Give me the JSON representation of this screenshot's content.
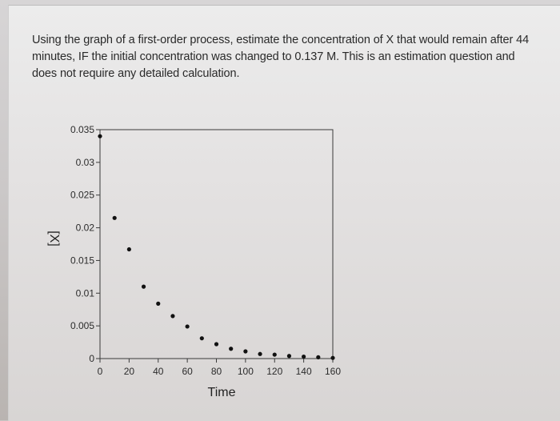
{
  "question": {
    "text": "Using the graph of a first-order process, estimate the concentration of X that would remain after 44 minutes, IF the initial concentration was changed to 0.137 M. This is an estimation question and does not require any detailed calculation."
  },
  "chart_data": {
    "type": "scatter",
    "title": "",
    "xlabel": "Time",
    "ylabel": "[X]",
    "xlim": [
      0,
      160
    ],
    "ylim": [
      0,
      0.035
    ],
    "xticks": [
      "0",
      "20",
      "40",
      "60",
      "80",
      "100",
      "120",
      "140",
      "160"
    ],
    "yticks": [
      "0",
      "0.005",
      "0.01",
      "0.015",
      "0.02",
      "0.025",
      "0.03",
      "0.035"
    ],
    "grid": false,
    "x": [
      0,
      10,
      20,
      30,
      40,
      50,
      60,
      70,
      80,
      90,
      100,
      110,
      120,
      130,
      140,
      150,
      160
    ],
    "values": [
      0.034,
      0.0215,
      0.0167,
      0.011,
      0.0084,
      0.0065,
      0.0049,
      0.0031,
      0.0022,
      0.0015,
      0.0011,
      0.0007,
      0.0006,
      0.0004,
      0.0003,
      0.0002,
      0.0001
    ]
  }
}
